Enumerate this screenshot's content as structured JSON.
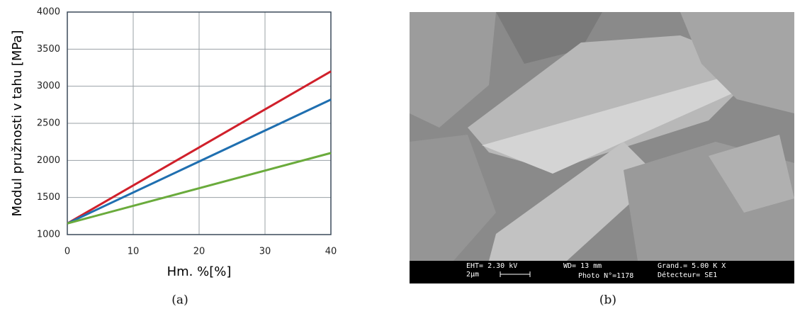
{
  "chart_data": {
    "type": "line",
    "x_label": "Hm. %[%]",
    "y_label": "Modul pružnosti v tahu [MPa]",
    "x": [
      0,
      40
    ],
    "series": [
      {
        "color": "#d0202b",
        "values": [
          1150,
          3200
        ]
      },
      {
        "color": "#1f6fb0",
        "values": [
          1150,
          2820
        ]
      },
      {
        "color": "#6aab3c",
        "values": [
          1150,
          2100
        ]
      }
    ],
    "xlim": [
      0,
      40
    ],
    "xticks": [
      0,
      10,
      20,
      30,
      40
    ],
    "ylim": [
      1000,
      4000
    ],
    "yticks": [
      1000,
      1500,
      2000,
      2500,
      3000,
      3500,
      4000
    ],
    "grid": true
  },
  "image": {
    "info": [
      "EHT= 2.30 kV",
      "WD=  13 mm",
      "Grand.=  5.00 K X",
      "2μm",
      "Photo N°=1178",
      "Détecteur= SE1"
    ]
  },
  "captions": [
    "(a)",
    "(b)"
  ]
}
